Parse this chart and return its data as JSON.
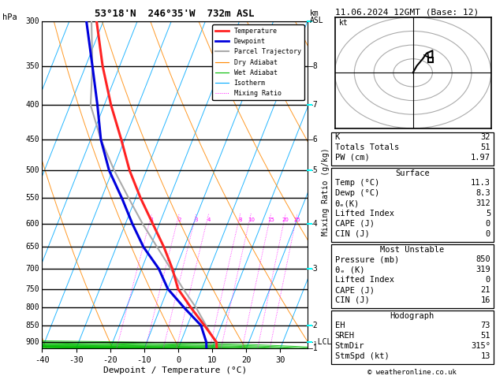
{
  "title_left": "53°18'N  246°35'W  732m ASL",
  "title_right": "11.06.2024 12GMT (Base: 12)",
  "xlabel": "Dewpoint / Temperature (°C)",
  "pressure_levels": [
    300,
    350,
    400,
    450,
    500,
    550,
    600,
    650,
    700,
    750,
    800,
    850,
    900
  ],
  "pressure_min": 300,
  "pressure_max": 920,
  "temp_min": -40,
  "temp_max": 38,
  "colors": {
    "temperature": "#ff2222",
    "dewpoint": "#0000dd",
    "parcel": "#aaaaaa",
    "dry_adiabat": "#ff8800",
    "wet_adiabat": "#00bb00",
    "isotherm": "#00aaff",
    "mixing_ratio": "#ff00ff",
    "background": "#ffffff",
    "grid": "#000000"
  },
  "temperature_profile": {
    "pressure": [
      920,
      900,
      850,
      800,
      750,
      700,
      650,
      600,
      550,
      500,
      450,
      400,
      350,
      300
    ],
    "temp": [
      11.3,
      10.5,
      5.0,
      -1.0,
      -7.0,
      -11.0,
      -16.0,
      -22.0,
      -28.5,
      -35.0,
      -41.0,
      -48.0,
      -55.0,
      -62.0
    ]
  },
  "dewpoint_profile": {
    "pressure": [
      920,
      900,
      850,
      800,
      750,
      700,
      650,
      600,
      550,
      500,
      450,
      400,
      350,
      300
    ],
    "temp": [
      8.3,
      7.5,
      4.0,
      -3.0,
      -10.0,
      -15.0,
      -22.0,
      -28.0,
      -34.0,
      -41.0,
      -47.0,
      -52.0,
      -58.0,
      -65.0
    ]
  },
  "parcel_profile": {
    "pressure": [
      920,
      900,
      850,
      800,
      750,
      700,
      650,
      600,
      550,
      500,
      450,
      400,
      350,
      300
    ],
    "temp": [
      11.3,
      10.2,
      5.5,
      0.5,
      -5.5,
      -11.5,
      -18.0,
      -25.0,
      -32.0,
      -39.5,
      -47.0,
      -54.0,
      -58.0,
      -63.5
    ]
  },
  "lcl_pressure": 900,
  "mixing_ratios": [
    1,
    2,
    3,
    4,
    8,
    10,
    15,
    20,
    25
  ],
  "km_asl_labels": [
    [
      920,
      "1"
    ],
    [
      850,
      "2"
    ],
    [
      700,
      "3"
    ],
    [
      600,
      "4"
    ],
    [
      500,
      "5"
    ],
    [
      450,
      "6"
    ],
    [
      400,
      "7"
    ],
    [
      350,
      "8"
    ]
  ],
  "right_panel": {
    "K": 32,
    "Totals_Totals": 51,
    "PW_cm": "1.97",
    "Surface_Temp": "11.3",
    "Surface_Dewp": "8.3",
    "Surface_theta_e": 312,
    "Surface_LiftedIndex": 5,
    "Surface_CAPE": 0,
    "Surface_CIN": 0,
    "MU_Pressure": 850,
    "MU_theta_e": 319,
    "MU_LiftedIndex": 0,
    "MU_CAPE": 21,
    "MU_CIN": 16,
    "EH": 73,
    "SREH": 51,
    "StmDir": "315°",
    "StmSpd_kt": 13
  },
  "copyright": "© weatheronline.co.uk"
}
